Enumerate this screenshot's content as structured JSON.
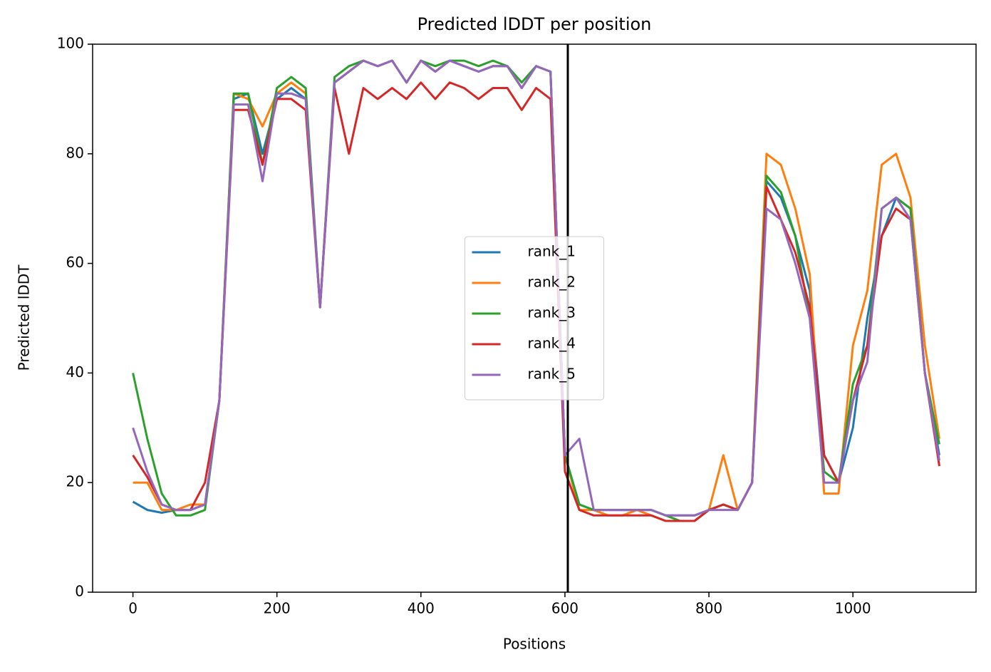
{
  "chart_data": {
    "type": "line",
    "title": "Predicted lDDT per position",
    "xlabel": "Positions",
    "ylabel": "Predicted lDDT",
    "x": [
      0,
      20,
      40,
      60,
      80,
      100,
      120,
      140,
      160,
      180,
      200,
      220,
      240,
      260,
      280,
      300,
      320,
      340,
      360,
      380,
      400,
      420,
      440,
      460,
      480,
      500,
      520,
      540,
      560,
      580,
      600,
      620,
      640,
      660,
      680,
      700,
      720,
      740,
      760,
      780,
      800,
      820,
      840,
      860,
      880,
      900,
      920,
      940,
      960,
      980,
      1000,
      1020,
      1040,
      1060,
      1080,
      1100,
      1120
    ],
    "series": [
      {
        "name": "rank_1",
        "color": "#1f77b4",
        "values": [
          16.5,
          15,
          14.5,
          15,
          15,
          16,
          35,
          90,
          91,
          80,
          90,
          92,
          90,
          52,
          93,
          95,
          97,
          96,
          97,
          93,
          97,
          95,
          97,
          96,
          95,
          96,
          96,
          92,
          96,
          95,
          25,
          16,
          15,
          15,
          15,
          15,
          15,
          14,
          14,
          14,
          15,
          16,
          15,
          20,
          75,
          72,
          65,
          55,
          25,
          20,
          30,
          50,
          65,
          72,
          70,
          40,
          25
        ]
      },
      {
        "name": "rank_2",
        "color": "#ff7f0e",
        "values": [
          20,
          20,
          15,
          15,
          16,
          16,
          35,
          91,
          90,
          85,
          91,
          93,
          91,
          52,
          93,
          95,
          97,
          96,
          97,
          93,
          97,
          95,
          97,
          96,
          95,
          96,
          96,
          92,
          96,
          95,
          25,
          15,
          15,
          14,
          14,
          15,
          14,
          13,
          13,
          13,
          15,
          25,
          15,
          20,
          80,
          78,
          70,
          58,
          18,
          18,
          45,
          55,
          78,
          80,
          72,
          45,
          28
        ]
      },
      {
        "name": "rank_3",
        "color": "#2ca02c",
        "values": [
          40,
          28,
          18,
          14,
          14,
          15,
          35,
          91,
          91,
          78,
          92,
          94,
          92,
          52,
          94,
          96,
          97,
          96,
          97,
          93,
          97,
          96,
          97,
          97,
          96,
          97,
          96,
          93,
          96,
          95,
          25,
          16,
          15,
          15,
          15,
          15,
          15,
          14,
          13,
          13,
          15,
          16,
          15,
          20,
          76,
          73,
          65,
          50,
          22,
          20,
          38,
          45,
          70,
          72,
          70,
          40,
          27
        ]
      },
      {
        "name": "rank_4",
        "color": "#d62728",
        "values": [
          25,
          21,
          16,
          15,
          15,
          20,
          35,
          88,
          88,
          78,
          90,
          90,
          88,
          52,
          92,
          80,
          92,
          90,
          92,
          90,
          93,
          90,
          93,
          92,
          90,
          92,
          92,
          88,
          92,
          90,
          22,
          15,
          14,
          14,
          14,
          14,
          14,
          13,
          13,
          13,
          15,
          16,
          15,
          20,
          74,
          68,
          62,
          52,
          25,
          20,
          35,
          45,
          65,
          70,
          68,
          40,
          23
        ]
      },
      {
        "name": "rank_5",
        "color": "#9467bd",
        "values": [
          30,
          22,
          16,
          15,
          15,
          16,
          35,
          89,
          89,
          75,
          91,
          91,
          90,
          52,
          93,
          95,
          97,
          96,
          97,
          93,
          97,
          95,
          97,
          96,
          95,
          96,
          96,
          92,
          96,
          95,
          25,
          28,
          15,
          15,
          15,
          15,
          15,
          14,
          14,
          14,
          15,
          15,
          15,
          20,
          70,
          68,
          60,
          50,
          20,
          20,
          35,
          42,
          70,
          72,
          68,
          40,
          24
        ]
      }
    ],
    "vline": 604,
    "vline_color": "#000000",
    "xlim": [
      -56,
      1171
    ],
    "ylim": [
      0,
      100
    ],
    "xticks": [
      0,
      200,
      400,
      600,
      800,
      1000
    ],
    "yticks": [
      0,
      20,
      40,
      60,
      80,
      100
    ],
    "legend": "center"
  }
}
